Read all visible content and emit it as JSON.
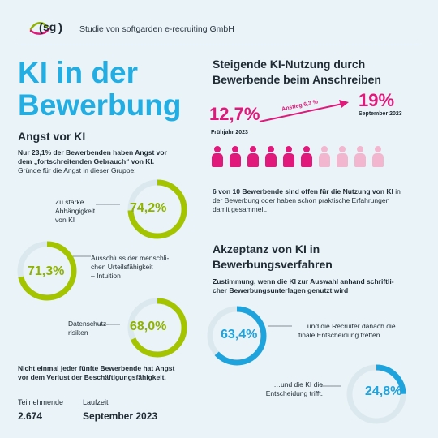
{
  "header": {
    "logo_text": "sg",
    "brand_text": "Studie von softgarden e-recruiting GmbH"
  },
  "main_title": {
    "line1": "KI in der",
    "line2": "Bewerbung"
  },
  "angst": {
    "heading": "Angst vor KI",
    "intro_bold_line1": "Nur 23,1% der Bewerbenden haben Angst vor",
    "intro_bold_line2": "dem „fortschreitenden Gebrauch“ von KI.",
    "intro_normal": "Gründe für die Angst in dieser Gruppe:",
    "items": [
      {
        "label": [
          "Zu starke",
          "Abhängigkeit",
          "von KI"
        ],
        "value": 74.2,
        "text": "74,2%"
      },
      {
        "label": [
          "Ausschluss der menschli-",
          "chen Urteilsfähigkeit",
          "– Intuition"
        ],
        "value": 71.3,
        "text": "71,3%"
      },
      {
        "label": [
          "Datenschutz-",
          "risiken"
        ],
        "value": 68.0,
        "text": "68,0%"
      }
    ],
    "footer_line1": "Nicht einmal jeder fünfte Bewerbende hat Angst",
    "footer_line2": "vor dem Verlust der Beschäftigungsfähigkeit."
  },
  "stats": {
    "participants_label": "Teilnehmende",
    "participants_value": "2.674",
    "runtime_label": "Laufzeit",
    "runtime_value": "September 2023"
  },
  "usage": {
    "heading_line1": "Steigende KI-Nutzung durch",
    "heading_line2": "Bewerbende beim Anschreiben",
    "from_value": "12,7%",
    "from_date": "Frühjahr 2023",
    "to_value": "19%",
    "to_date": "September 2023",
    "increase_label": "Anstieg 6,3 %",
    "people_total": 10,
    "people_highlighted": 6,
    "note_line1_bold": "6 von 10 Bewerbende sind offen für die Nutzung von KI",
    "note_line1_rest": " in",
    "note_line2": "der Bewerbung oder haben schon praktische Erfahrungen",
    "note_line3": "damit gesammelt."
  },
  "acceptance": {
    "heading_line1": "Akzeptanz von KI in",
    "heading_line2": "Bewerbungsverfahren",
    "sub_line1": "Zustimmung, wenn die KI zur Auswahl anhand schriftli-",
    "sub_line2": "cher Bewerbungsunterlagen genutzt wird",
    "items": [
      {
        "label": [
          "… und die Recruiter danach die",
          "finale Entscheidung treffen."
        ],
        "value": 63.4,
        "text": "63,4%"
      },
      {
        "label": [
          "…und die KI die",
          "Entscheidung trifft."
        ],
        "value": 24.8,
        "text": "24,8%"
      }
    ]
  },
  "colors": {
    "title_blue": "#22aee3",
    "green": "#a5c400",
    "pink": "#e0197a",
    "pink_light": "#f3b6cf",
    "blue_ring": "#1fa3dd"
  }
}
